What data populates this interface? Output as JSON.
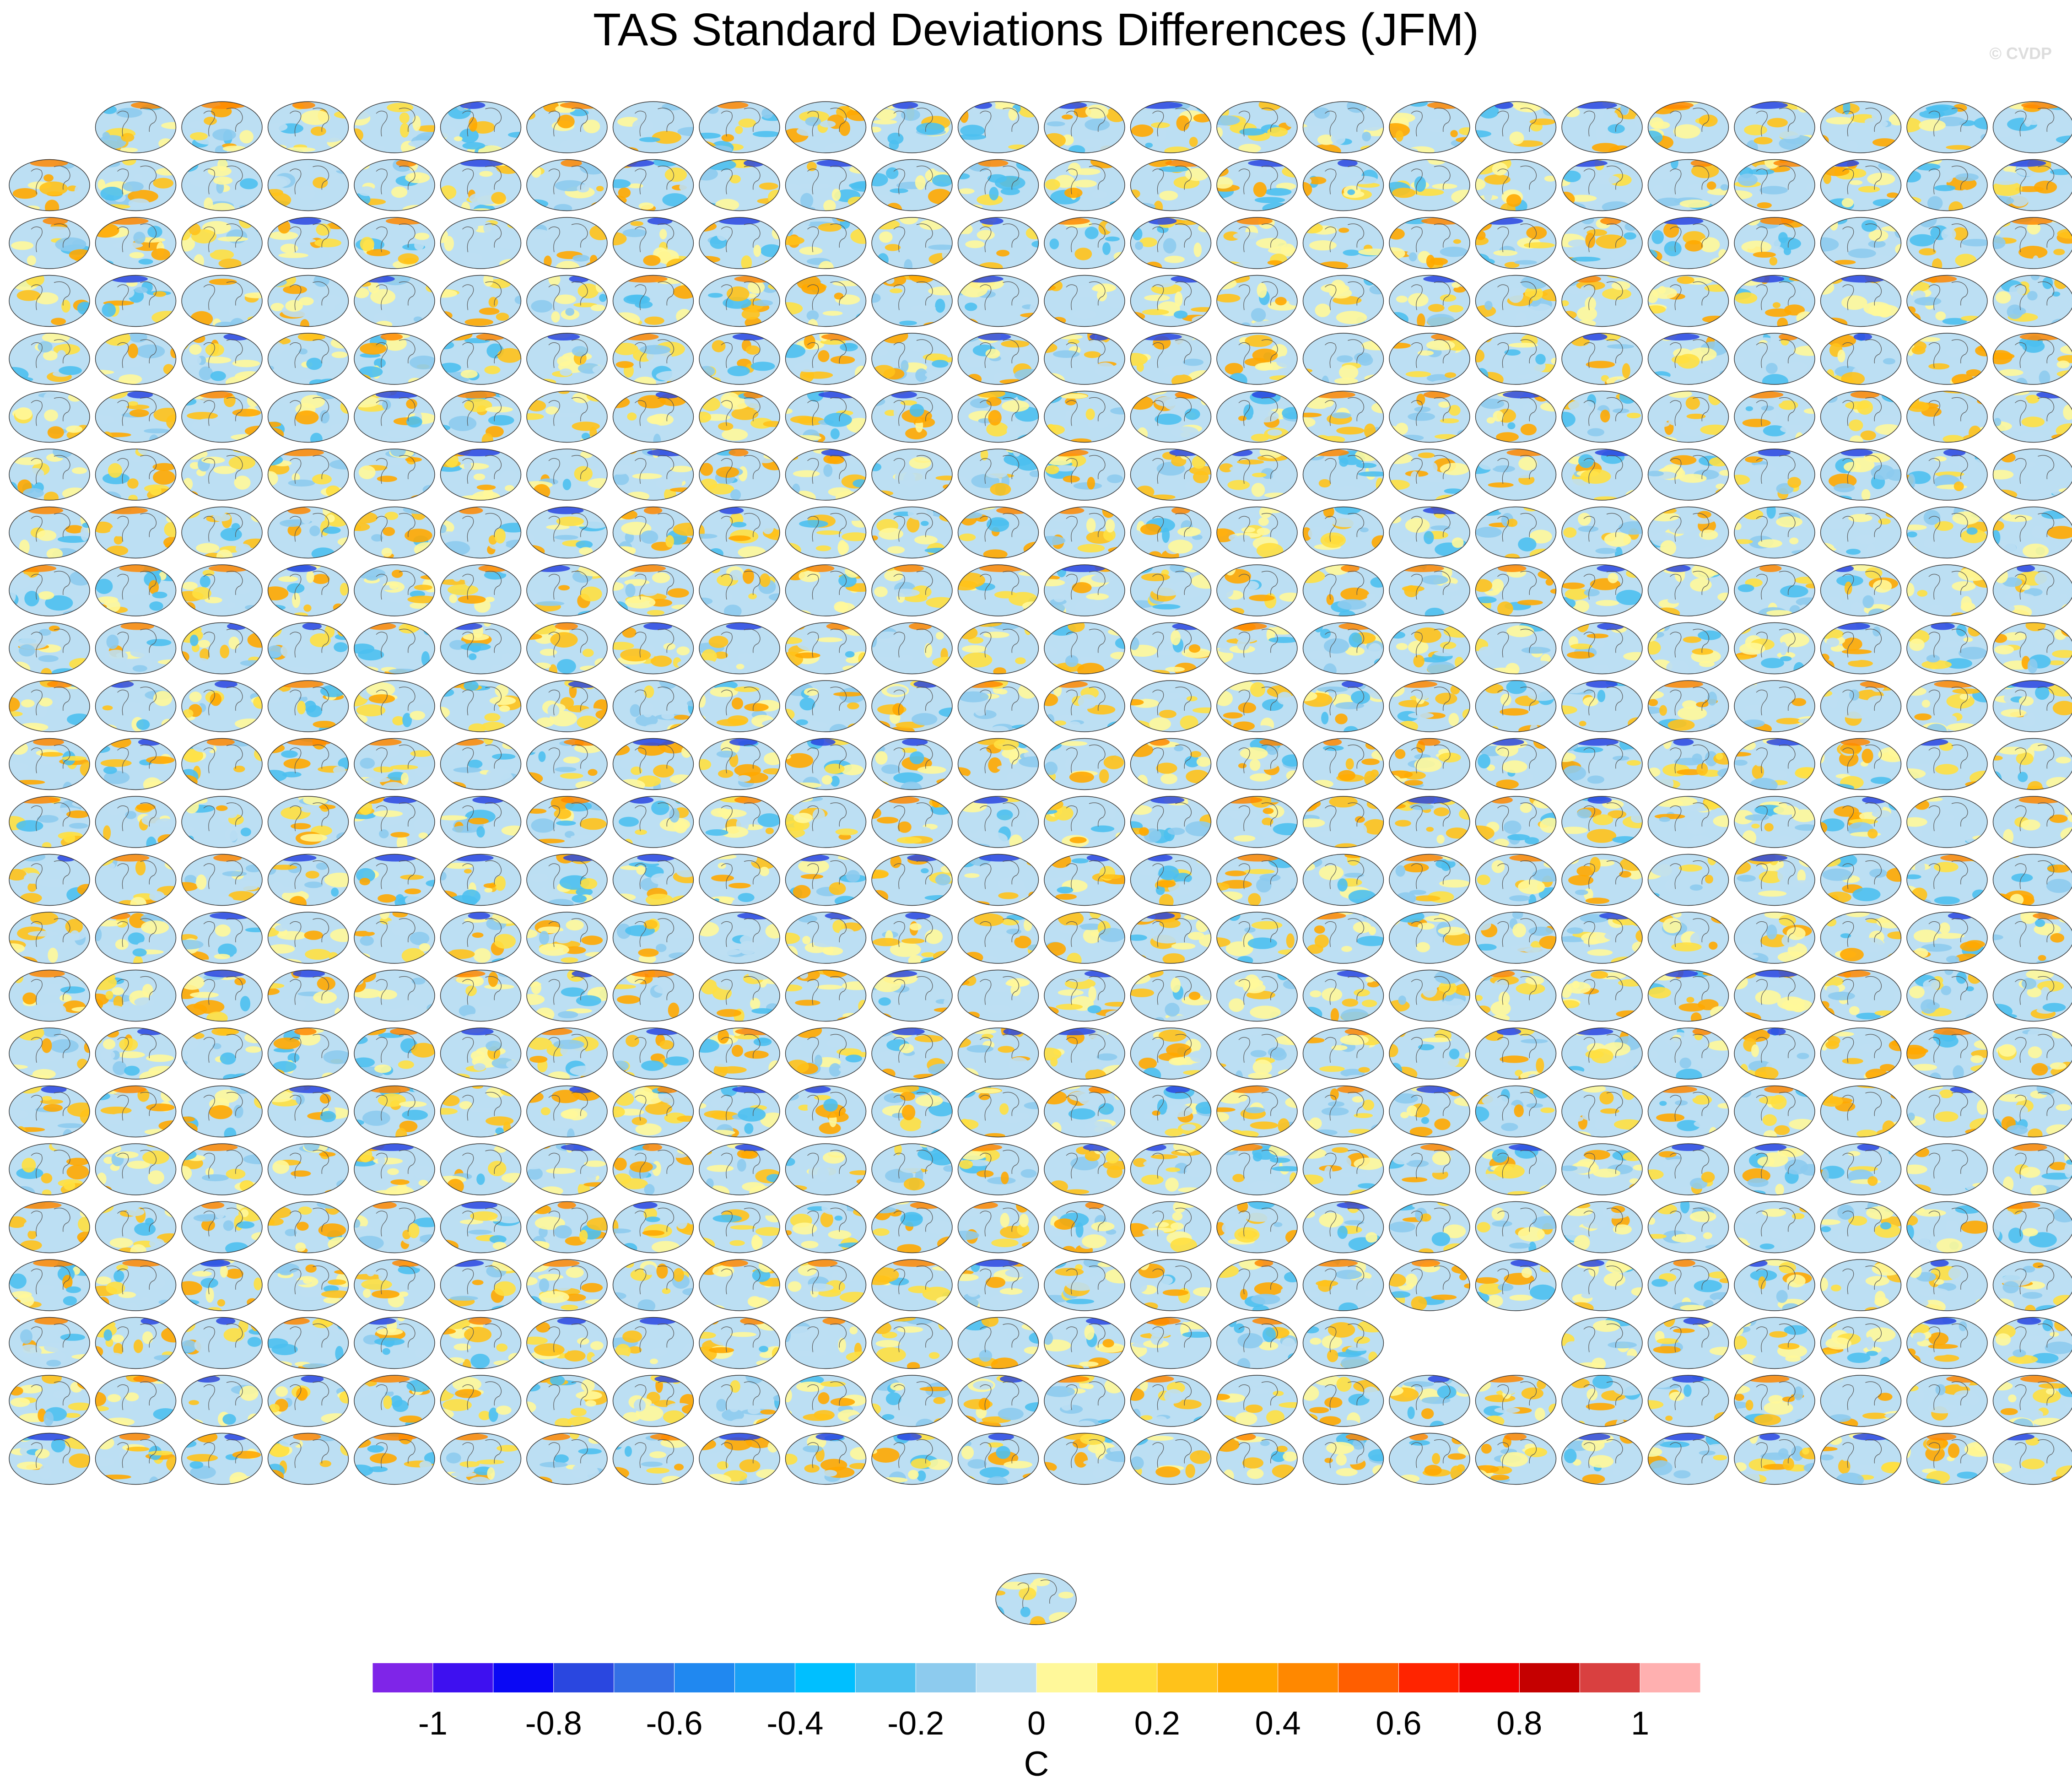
{
  "figure": {
    "title": "TAS Standard Deviations Differences (JFM)",
    "copyright": "© CVDP",
    "missing_panels": [
      [
        21,
        16
      ],
      [
        21,
        17
      ]
    ]
  },
  "chart_data": {
    "type": "heatmap",
    "title": "TAS Standard Deviations Differences (JFM)",
    "panels": {
      "rows": 24,
      "columns": 24,
      "row_counts": [
        23,
        24,
        24,
        24,
        24,
        24,
        24,
        24,
        24,
        24,
        24,
        24,
        24,
        24,
        24,
        24,
        24,
        24,
        24,
        24,
        22,
        24,
        24,
        24
      ],
      "extra_bottom_panels": 1,
      "projection": "global map",
      "panel_title_color": "#3a5fcd",
      "land_outline_color": "#555555"
    },
    "colorbar": {
      "label": "C",
      "orientation": "horizontal",
      "tick_labels": [
        "-1",
        "-0.8",
        "-0.6",
        "-0.4",
        "-0.2",
        "0",
        "0.2",
        "0.4",
        "0.6",
        "0.8",
        "1"
      ],
      "tick_values": [
        -1,
        -0.8,
        -0.6,
        -0.4,
        -0.2,
        0,
        0.2,
        0.4,
        0.6,
        0.8,
        1
      ],
      "levels": [
        -1.1,
        -1.0,
        -0.9,
        -0.8,
        -0.7,
        -0.6,
        -0.5,
        -0.4,
        -0.3,
        -0.2,
        -0.1,
        0,
        0.1,
        0.2,
        0.3,
        0.4,
        0.5,
        0.6,
        0.7,
        0.8,
        0.9,
        1.0,
        1.1
      ],
      "colors": [
        "#7f25e8",
        "#3e10f0",
        "#0a08f5",
        "#2a47e0",
        "#3470e5",
        "#2088f0",
        "#1ba0f5",
        "#00bfff",
        "#4cc0f0",
        "#8dcbee",
        "#bcdff3",
        "#fff89a",
        "#ffe040",
        "#ffc21a",
        "#ffa800",
        "#ff8800",
        "#ff5e00",
        "#ff2400",
        "#ee0000",
        "#c50000",
        "#d94040",
        "#ffb0b0"
      ]
    }
  }
}
